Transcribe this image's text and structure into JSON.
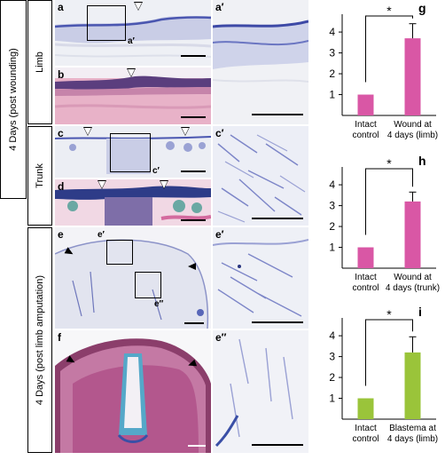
{
  "section_labels": {
    "days_wound": "4 Days (post wounding)",
    "limb": "Limb",
    "trunk": "Trunk",
    "days_amputation": "4 Days (post limb amputation)"
  },
  "panels": {
    "a": "a",
    "a_inset": "a′",
    "a_prime": "a′",
    "b": "b",
    "c": "c",
    "c_inset": "c′",
    "c_prime": "c′",
    "d": "d",
    "e": "e",
    "e_inset1": "e′",
    "e_inset2": "e″",
    "e_prime": "e′",
    "e_dprime": "e″",
    "f": "f"
  },
  "colors": {
    "pink": "#d957a5",
    "green": "#9ac43a",
    "stain_blue": "#4a56b0",
    "tissue_pink": "#e6a6c2"
  },
  "chart_data": [
    {
      "panel_label": "g",
      "type": "bar",
      "categories": [
        "Intact control",
        "Wound at 4 days (limb)"
      ],
      "category_lines": [
        [
          "Intact",
          "control"
        ],
        [
          "Wound at",
          "4 days (limb)"
        ]
      ],
      "values": [
        1.0,
        3.7
      ],
      "errors": [
        0,
        0.7
      ],
      "ylim": [
        0,
        4.6
      ],
      "yticks": [
        "1",
        "2",
        "3",
        "4"
      ],
      "significance": "*",
      "color": "#d957a5"
    },
    {
      "panel_label": "h",
      "type": "bar",
      "categories": [
        "Intact control",
        "Wound at 4 days (trunk)"
      ],
      "category_lines": [
        [
          "Intact",
          "control"
        ],
        [
          "Wound at",
          "4 days (trunk)"
        ]
      ],
      "values": [
        1.0,
        3.2
      ],
      "errors": [
        0,
        0.45
      ],
      "ylim": [
        0,
        4.6
      ],
      "yticks": [
        "1",
        "2",
        "3",
        "4"
      ],
      "significance": "*",
      "color": "#d957a5"
    },
    {
      "panel_label": "i",
      "type": "bar",
      "categories": [
        "Intact control",
        "Blastema at 4 days (limb)"
      ],
      "category_lines": [
        [
          "Intact",
          "control"
        ],
        [
          "Blastema at",
          "4 days (limb)"
        ]
      ],
      "values": [
        1.0,
        3.2
      ],
      "errors": [
        0,
        0.75
      ],
      "ylim": [
        0,
        4.6
      ],
      "yticks": [
        "1",
        "2",
        "3",
        "4"
      ],
      "significance": "*",
      "color": "#9ac43a"
    }
  ]
}
